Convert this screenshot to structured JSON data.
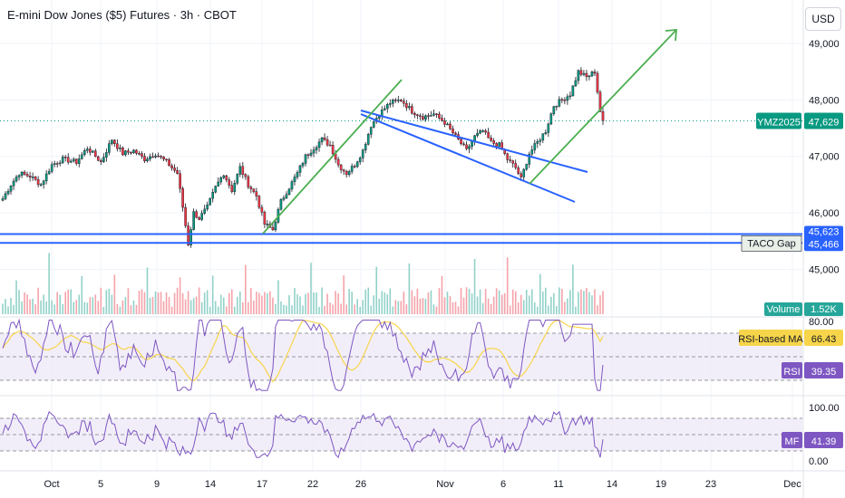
{
  "header": {
    "title": "E-mini Dow Jones ($5) Futures · 3h · CBOT",
    "currency_button": "USD"
  },
  "colors": {
    "up": "#089981",
    "down": "#f23645",
    "trendline": "#4caf50",
    "channel": "#2962ff",
    "rsi": "#7e57c2",
    "rsi_ma": "#f7d54a",
    "band_fill": "#ede7f6",
    "price_line": "#089981"
  },
  "chart_data": [
    {
      "type": "candlestick",
      "title": "E-mini Dow Jones ($5) Futures · 3h · CBOT",
      "y_ticks": [
        "49,000",
        "48,000",
        "47,000",
        "46,000",
        "45,000"
      ],
      "x_ticks": [
        "Oct",
        "5",
        "9",
        "14",
        "17",
        "22",
        "26",
        "Nov",
        "6",
        "11",
        "14",
        "19",
        "23",
        "Dec"
      ],
      "ylim": [
        44750,
        49700
      ],
      "last_price": {
        "label": "YMZ2025",
        "value": "47,629",
        "y": 47629
      },
      "levels": [
        {
          "name": "",
          "value": "45,623",
          "y": 45623
        },
        {
          "name": "TACO Gap",
          "value": "45,466",
          "y": 45466
        }
      ],
      "guide_points": [
        [
          0,
          46250
        ],
        [
          3,
          46500
        ],
        [
          6,
          46700
        ],
        [
          10,
          46650
        ],
        [
          14,
          46500
        ],
        [
          18,
          46850
        ],
        [
          22,
          46950
        ],
        [
          27,
          46900
        ],
        [
          31,
          47150
        ],
        [
          36,
          46900
        ],
        [
          40,
          47300
        ],
        [
          44,
          47050
        ],
        [
          48,
          47100
        ],
        [
          52,
          46950
        ],
        [
          56,
          47050
        ],
        [
          60,
          46900
        ],
        [
          64,
          46700
        ],
        [
          66,
          46100
        ],
        [
          68,
          45450
        ],
        [
          70,
          46000
        ],
        [
          72,
          45900
        ],
        [
          75,
          46100
        ],
        [
          78,
          46450
        ],
        [
          81,
          46700
        ],
        [
          84,
          46400
        ],
        [
          87,
          46800
        ],
        [
          90,
          46500
        ],
        [
          93,
          46300
        ],
        [
          96,
          45800
        ],
        [
          99,
          45700
        ],
        [
          102,
          46200
        ],
        [
          105,
          46450
        ],
        [
          108,
          46700
        ],
        [
          111,
          47000
        ],
        [
          114,
          47150
        ],
        [
          117,
          47300
        ],
        [
          120,
          47200
        ],
        [
          123,
          46850
        ],
        [
          126,
          46700
        ],
        [
          129,
          46850
        ],
        [
          132,
          47100
        ],
        [
          135,
          47550
        ],
        [
          138,
          47750
        ],
        [
          142,
          47950
        ],
        [
          146,
          48000
        ],
        [
          150,
          47800
        ],
        [
          154,
          47700
        ],
        [
          158,
          47750
        ],
        [
          162,
          47600
        ],
        [
          166,
          47350
        ],
        [
          170,
          47100
        ],
        [
          173,
          47350
        ],
        [
          176,
          47450
        ],
        [
          179,
          47250
        ],
        [
          182,
          47200
        ],
        [
          185,
          46950
        ],
        [
          188,
          46800
        ],
        [
          190,
          46600
        ],
        [
          193,
          47050
        ],
        [
          196,
          47250
        ],
        [
          199,
          47450
        ],
        [
          202,
          47900
        ],
        [
          205,
          48000
        ],
        [
          208,
          48100
        ],
        [
          211,
          48500
        ],
        [
          214,
          48400
        ],
        [
          217,
          48500
        ],
        [
          219,
          47800
        ],
        [
          220,
          47629
        ]
      ],
      "volume": {
        "label": "Volume",
        "value": "1.52K"
      },
      "annotations": {
        "channel_top": [
          [
            398,
            122
          ],
          [
            648,
            190
          ]
        ],
        "channel_bottom": [
          [
            398,
            126
          ],
          [
            634,
            223
          ]
        ],
        "arrow1": [
          [
            290,
            258
          ],
          [
            443,
            88
          ]
        ],
        "arrow2": [
          [
            584,
            203
          ],
          [
            746,
            33
          ]
        ]
      }
    },
    {
      "type": "line",
      "name": "RSI",
      "y_ticks": [
        "80.00"
      ],
      "series": [
        {
          "name": "RSI",
          "value": "39.35"
        },
        {
          "name": "RSI-based MA",
          "value": "66.43"
        }
      ]
    },
    {
      "type": "line",
      "name": "MF",
      "y_ticks": [
        "100.00",
        "0.00"
      ],
      "series": [
        {
          "name": "MF",
          "value": "41.39"
        }
      ]
    }
  ]
}
